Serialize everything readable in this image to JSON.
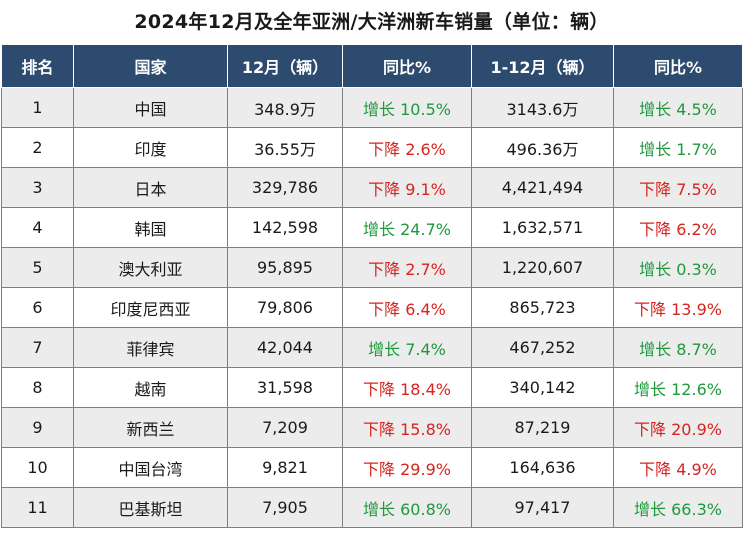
{
  "title": "2024年12月及全年亚洲/大洋洲新车销量（单位：辆）",
  "headers": [
    "排名",
    "国家",
    "12月（辆）",
    "同比%",
    "1-12月（辆）",
    "同比%"
  ],
  "rows": [
    {
      "rank": "1",
      "country": "中国",
      "dec": "348.9万",
      "dec_yoy": "增长 10.5%",
      "ytd": "3143.6万",
      "ytd_yoy": "增长 4.5%"
    },
    {
      "rank": "2",
      "country": "印度",
      "dec": "36.55万",
      "dec_yoy": "下降 2.6%",
      "ytd": "496.36万",
      "ytd_yoy": "增长 1.7%"
    },
    {
      "rank": "3",
      "country": "日本",
      "dec": "329,786",
      "dec_yoy": "下降 9.1%",
      "ytd": "4,421,494",
      "ytd_yoy": "下降 7.5%"
    },
    {
      "rank": "4",
      "country": "韩国",
      "dec": "142,598",
      "dec_yoy": "增长 24.7%",
      "ytd": "1,632,571",
      "ytd_yoy": "下降 6.2%"
    },
    {
      "rank": "5",
      "country": "澳大利亚",
      "dec": "95,895",
      "dec_yoy": "下降 2.7%",
      "ytd": "1,220,607",
      "ytd_yoy": "增长 0.3%"
    },
    {
      "rank": "6",
      "country": "印度尼西亚",
      "dec": "79,806",
      "dec_yoy": "下降 6.4%",
      "ytd": "865,723",
      "ytd_yoy": "下降 13.9%"
    },
    {
      "rank": "7",
      "country": "菲律宾",
      "dec": "42,044",
      "dec_yoy": "增长 7.4%",
      "ytd": "467,252",
      "ytd_yoy": "增长 8.7%"
    },
    {
      "rank": "8",
      "country": "越南",
      "dec": "31,598",
      "dec_yoy": "下降 18.4%",
      "ytd": "340,142",
      "ytd_yoy": "增长 12.6%"
    },
    {
      "rank": "9",
      "country": "新西兰",
      "dec": "7,209",
      "dec_yoy": "下降 15.8%",
      "ytd": "87,219",
      "ytd_yoy": "下降 20.9%"
    },
    {
      "rank": "10",
      "country": "中国台湾",
      "dec": "9,821",
      "dec_yoy": "下降 29.9%",
      "ytd": "164,636",
      "ytd_yoy": "下降 4.9%"
    },
    {
      "rank": "11",
      "country": "巴基斯坦",
      "dec": "7,905",
      "dec_yoy": "增长 60.8%",
      "ytd": "97,417",
      "ytd_yoy": "增长 66.3%"
    }
  ],
  "colors": {
    "header_bg": "#2d4b6f",
    "increase": "#1e9a3c",
    "decrease": "#d9231e",
    "zebra": "#ececec"
  }
}
